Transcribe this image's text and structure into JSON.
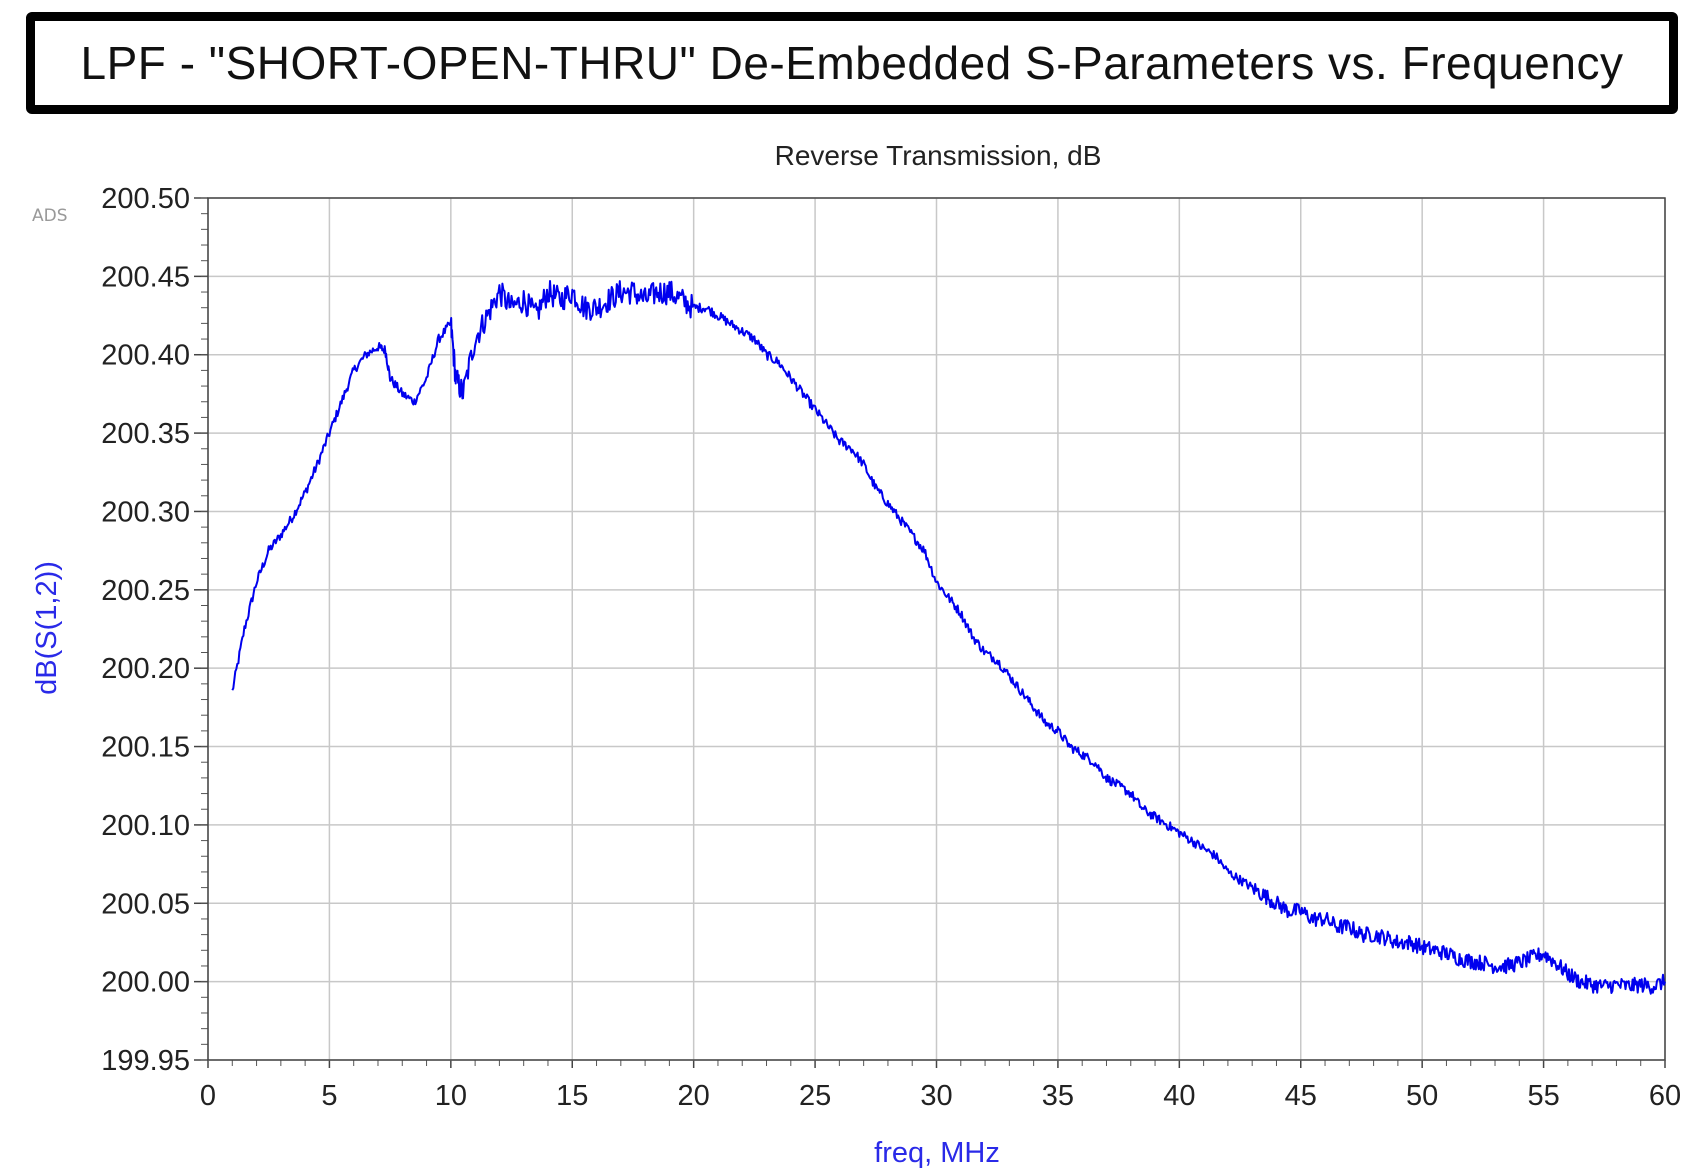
{
  "header": {
    "title": "LPF - \"SHORT-OPEN-THRU\" De-Embedded S-Parameters vs. Frequency"
  },
  "chart_data": {
    "type": "line",
    "title": "Reverse Transmission, dB",
    "watermark": "ADS",
    "xlabel": "freq, MHz",
    "ylabel": "dB(S(1,2))",
    "xlim": [
      0,
      60
    ],
    "ylim": [
      199.95,
      200.5
    ],
    "xticks": [
      "0",
      "5",
      "10",
      "15",
      "20",
      "25",
      "30",
      "35",
      "40",
      "45",
      "50",
      "55",
      "60"
    ],
    "yticks": [
      "199.95",
      "200.00",
      "200.05",
      "200.10",
      "200.15",
      "200.20",
      "200.25",
      "200.30",
      "200.35",
      "200.40",
      "200.45",
      "200.50"
    ],
    "grid": true,
    "colors": {
      "series": "#0000ee",
      "axis_label": "#2a2ae8",
      "grid": "#c8c8c8"
    },
    "series": [
      {
        "x": [
          1.0,
          1.5,
          2.0,
          2.5,
          3.0,
          3.5,
          4.0,
          4.5,
          5.0,
          5.5,
          6.0,
          6.5,
          7.0,
          7.3,
          7.5,
          8.0,
          8.5,
          9.0,
          9.5,
          10.0,
          10.2,
          10.5,
          11.0,
          11.5,
          12.0,
          12.5,
          13.0,
          13.5,
          14.0,
          14.5,
          15.0,
          15.5,
          16.0,
          16.5,
          17.0,
          17.5,
          18.0,
          18.5,
          19.0,
          19.5,
          20.0,
          20.5,
          21.0,
          21.5,
          22.0,
          22.5,
          23.0,
          23.5,
          24.0,
          24.5,
          25.0,
          25.5,
          26.0,
          26.5,
          27.0,
          27.5,
          28.0,
          28.5,
          29.0,
          29.5,
          30.0,
          30.5,
          31.0,
          31.5,
          32.0,
          32.5,
          33.0,
          33.5,
          34.0,
          34.5,
          35.0,
          35.5,
          36.0,
          36.5,
          37.0,
          37.5,
          38.0,
          38.5,
          39.0,
          39.5,
          40.0,
          40.5,
          41.0,
          41.5,
          42.0,
          42.5,
          43.0,
          43.5,
          44.0,
          44.5,
          45.0,
          45.5,
          46.0,
          46.5,
          47.0,
          47.5,
          48.0,
          48.5,
          49.0,
          49.5,
          50.0,
          50.5,
          51.0,
          51.5,
          52.0,
          52.5,
          53.0,
          53.5,
          54.0,
          54.5,
          55.0,
          55.5,
          56.0,
          56.5,
          57.0,
          57.5,
          58.0,
          58.5,
          59.0,
          59.5,
          60.0
        ],
        "values": [
          200.185,
          200.225,
          200.255,
          200.275,
          200.285,
          200.297,
          200.312,
          200.33,
          200.35,
          200.37,
          200.39,
          200.4,
          200.405,
          200.403,
          200.385,
          200.375,
          200.37,
          200.385,
          200.41,
          200.42,
          200.385,
          200.375,
          200.41,
          200.425,
          200.44,
          200.43,
          200.435,
          200.425,
          200.44,
          200.435,
          200.44,
          200.43,
          200.43,
          200.435,
          200.44,
          200.44,
          200.435,
          200.44,
          200.44,
          200.435,
          200.43,
          200.43,
          200.425,
          200.42,
          200.415,
          200.41,
          200.4,
          200.395,
          200.385,
          200.375,
          200.365,
          200.355,
          200.345,
          200.34,
          200.33,
          200.315,
          200.305,
          200.295,
          200.285,
          200.275,
          200.255,
          200.245,
          200.235,
          200.22,
          200.21,
          200.205,
          200.195,
          200.185,
          200.175,
          200.165,
          200.16,
          200.15,
          200.145,
          200.14,
          200.13,
          200.125,
          200.12,
          200.11,
          200.105,
          200.1,
          200.095,
          200.09,
          200.085,
          200.08,
          200.07,
          200.065,
          200.06,
          200.055,
          200.05,
          200.045,
          200.045,
          200.04,
          200.04,
          200.035,
          200.035,
          200.03,
          200.03,
          200.028,
          200.025,
          200.025,
          200.022,
          200.02,
          200.018,
          200.015,
          200.013,
          200.012,
          200.01,
          200.01,
          200.012,
          200.015,
          200.018,
          200.012,
          200.005,
          200.0,
          199.998,
          199.997,
          199.998,
          199.997,
          199.998,
          199.997,
          200.0
        ]
      }
    ]
  }
}
